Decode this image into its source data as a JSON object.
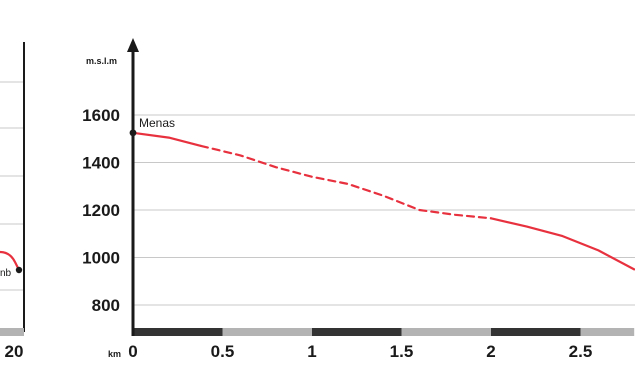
{
  "chart_data": {
    "type": "line",
    "ylabel": "m.s.l.m",
    "xlabel": "km",
    "ylim": [
      600,
      1800
    ],
    "xlim": [
      0,
      2.8
    ],
    "yticks": [
      {
        "value": 1600,
        "label": "1600"
      },
      {
        "value": 1400,
        "label": "1400"
      },
      {
        "value": 1200,
        "label": "1200"
      },
      {
        "value": 1000,
        "label": "1000"
      },
      {
        "value": 800,
        "label": "800"
      }
    ],
    "xticks": [
      {
        "value": 0,
        "label": "0"
      },
      {
        "value": 0.5,
        "label": "0.5"
      },
      {
        "value": 1,
        "label": "1"
      },
      {
        "value": 1.5,
        "label": "1.5"
      },
      {
        "value": 2,
        "label": "2"
      },
      {
        "value": 2.5,
        "label": "2.5"
      }
    ],
    "grid": true,
    "line_color": "#e8313f",
    "start_label": "Menas",
    "segments": [
      {
        "style": "solid",
        "points": [
          [
            0,
            1525
          ],
          [
            0.2,
            1505
          ],
          [
            0.38,
            1470
          ]
        ]
      },
      {
        "style": "dashed",
        "points": [
          [
            0.38,
            1470
          ],
          [
            0.6,
            1430
          ],
          [
            0.8,
            1380
          ],
          [
            1.0,
            1340
          ],
          [
            1.2,
            1310
          ],
          [
            1.4,
            1260
          ],
          [
            1.6,
            1200
          ],
          [
            1.8,
            1180
          ],
          [
            2.0,
            1165
          ]
        ]
      },
      {
        "style": "solid",
        "points": [
          [
            2.0,
            1165
          ],
          [
            2.2,
            1130
          ],
          [
            2.4,
            1090
          ],
          [
            2.6,
            1030
          ],
          [
            2.8,
            950
          ]
        ]
      }
    ],
    "distance_bar": [
      {
        "from": 0,
        "to": 0.5,
        "fill": "#333333"
      },
      {
        "from": 0.5,
        "to": 1.0,
        "fill": "#b3b3b3"
      },
      {
        "from": 1.0,
        "to": 1.5,
        "fill": "#333333"
      },
      {
        "from": 1.5,
        "to": 2.0,
        "fill": "#b3b3b3"
      },
      {
        "from": 2.0,
        "to": 2.5,
        "fill": "#333333"
      },
      {
        "from": 2.5,
        "to": 2.8,
        "fill": "#b3b3b3"
      }
    ],
    "left_fragment": {
      "tick_label": "20",
      "end_label": "nb"
    }
  }
}
